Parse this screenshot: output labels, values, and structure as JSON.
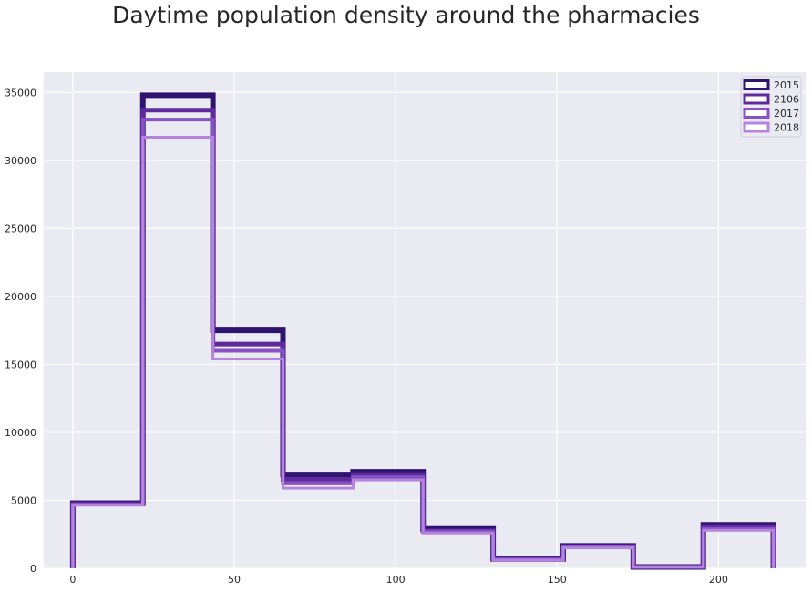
{
  "chart_data": {
    "type": "histogram-step",
    "title": "Daytime population density around the pharmacies",
    "xlabel": "",
    "ylabel": "",
    "xlim": [
      -9,
      227
    ],
    "ylim": [
      0,
      36500
    ],
    "x_ticks": [
      0,
      50,
      100,
      150,
      200
    ],
    "y_ticks": [
      0,
      5000,
      10000,
      15000,
      20000,
      25000,
      30000,
      35000
    ],
    "grid": true,
    "legend_position": "top-right",
    "bin_edges": [
      0,
      21.7,
      43.4,
      65.1,
      86.8,
      108.5,
      130.2,
      151.9,
      173.6,
      195.3,
      217
    ],
    "series": [
      {
        "name": "2015",
        "color": "#2e1370",
        "values": [
          4800,
          34800,
          17500,
          6900,
          7100,
          2900,
          700,
          1650,
          100,
          3200
        ]
      },
      {
        "name": "2106",
        "color": "#5e2a9e",
        "values": [
          4750,
          33700,
          16500,
          6550,
          6900,
          2750,
          650,
          1600,
          100,
          3000
        ]
      },
      {
        "name": "2017",
        "color": "#8952c4",
        "values": [
          4700,
          33000,
          16000,
          6250,
          6700,
          2700,
          650,
          1550,
          100,
          2900
        ]
      },
      {
        "name": "2018",
        "color": "#b584de",
        "values": [
          4650,
          31700,
          15400,
          5900,
          6500,
          2600,
          600,
          1500,
          100,
          2800
        ]
      }
    ]
  }
}
